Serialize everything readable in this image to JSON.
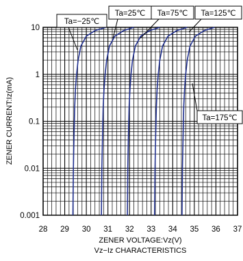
{
  "chart_data": {
    "type": "line",
    "title": "",
    "caption": "Vz−Iz CHARACTERISTICS",
    "xlabel": "ZENER VOLTAGE:Vz(V)",
    "ylabel": "ZENER CURRENT:Iz(mA)",
    "xlim": [
      28,
      37
    ],
    "ylim": [
      0.001,
      10
    ],
    "yscale": "log",
    "grid": true,
    "xticks": [
      "28",
      "29",
      "30",
      "31",
      "32",
      "33",
      "34",
      "35",
      "36",
      "37"
    ],
    "yticks": [
      {
        "value": 10,
        "label": "10"
      },
      {
        "value": 1,
        "label": "1"
      },
      {
        "value": 0.1,
        "label": "0.1"
      },
      {
        "value": 0.01,
        "label": "0.01"
      },
      {
        "value": 0.001,
        "label": "0.001"
      }
    ],
    "series_color": "#1f2f8f",
    "series": [
      {
        "name": "Ta=−25℃",
        "x": [
          29.38,
          29.4,
          29.43,
          29.46,
          29.5,
          29.55,
          29.62,
          29.75,
          30.0,
          30.4,
          30.9
        ],
        "y": [
          0.001,
          0.01,
          0.05,
          0.2,
          0.5,
          1,
          2,
          4,
          6.5,
          8.5,
          10
        ]
      },
      {
        "name": "Ta=25℃",
        "x": [
          30.7,
          30.72,
          30.75,
          30.78,
          30.82,
          30.87,
          30.94,
          31.07,
          31.32,
          31.72,
          32.2
        ],
        "y": [
          0.001,
          0.01,
          0.05,
          0.2,
          0.5,
          1,
          2,
          4,
          6.5,
          8.5,
          10
        ]
      },
      {
        "name": "Ta=75℃",
        "x": [
          31.9,
          31.92,
          31.95,
          31.98,
          32.02,
          32.07,
          32.14,
          32.27,
          32.52,
          32.92,
          33.4
        ],
        "y": [
          0.001,
          0.01,
          0.05,
          0.2,
          0.5,
          1,
          2,
          4,
          6.5,
          8.5,
          10
        ]
      },
      {
        "name": "Ta=125℃",
        "x": [
          33.16,
          33.18,
          33.21,
          33.24,
          33.28,
          33.33,
          33.4,
          33.53,
          33.78,
          34.18,
          34.66
        ],
        "y": [
          0.001,
          0.01,
          0.05,
          0.2,
          0.5,
          1,
          2,
          4,
          6.5,
          8.5,
          10
        ]
      },
      {
        "name": "Ta=175℃",
        "x": [
          34.43,
          34.45,
          34.48,
          34.51,
          34.55,
          34.6,
          34.67,
          34.8,
          35.05,
          35.45,
          35.93
        ],
        "y": [
          0.001,
          0.01,
          0.05,
          0.2,
          0.5,
          1,
          2,
          4,
          6.5,
          8.5,
          10
        ]
      }
    ]
  }
}
